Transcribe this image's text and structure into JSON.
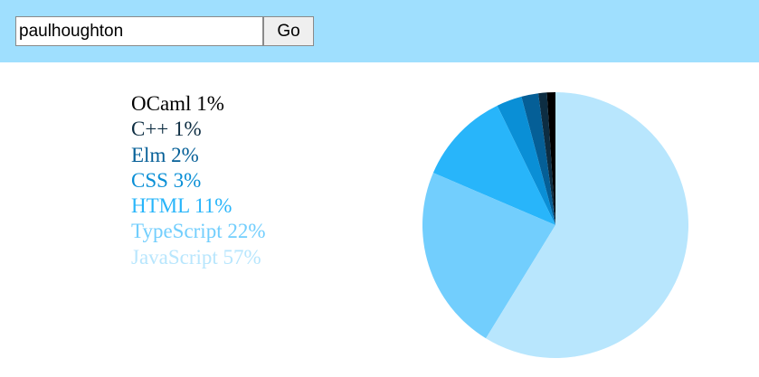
{
  "search": {
    "value": "paulhoughton",
    "button_label": "Go"
  },
  "legend": [
    {
      "label": "OCaml 1%",
      "color": "#000000"
    },
    {
      "label": "C++ 1%",
      "color": "#0d2d42"
    },
    {
      "label": "Elm 2%",
      "color": "#055f97"
    },
    {
      "label": "CSS 3%",
      "color": "#0a8fd6"
    },
    {
      "label": "HTML 11%",
      "color": "#28b5fa"
    },
    {
      "label": "TypeScript 22%",
      "color": "#72cefd"
    },
    {
      "label": "JavaScript 57%",
      "color": "#b8e6fd"
    }
  ],
  "chart_data": {
    "type": "pie",
    "categories": [
      "OCaml",
      "C++",
      "Elm",
      "CSS",
      "HTML",
      "TypeScript",
      "JavaScript"
    ],
    "values": [
      1,
      1,
      2,
      3,
      11,
      22,
      57
    ],
    "colors": [
      "#000000",
      "#0d2d42",
      "#055f97",
      "#0a8fd6",
      "#28b5fa",
      "#72cefd",
      "#b8e6fd"
    ],
    "legend_position": "left"
  }
}
